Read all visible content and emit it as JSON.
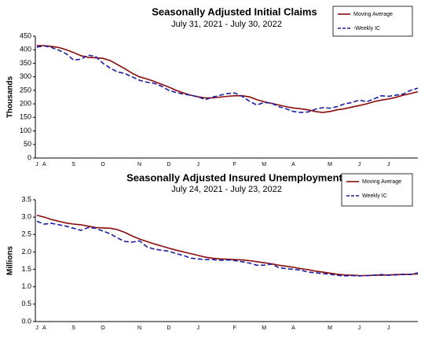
{
  "chart_data": [
    {
      "type": "line",
      "title": "Seasonally Adjusted Initial Claims",
      "subtitle": "July 31, 2021 - July 30, 2022",
      "y_label": "Thousands",
      "categories": [
        "J",
        "A",
        null,
        null,
        null,
        "S",
        null,
        null,
        null,
        "O",
        null,
        null,
        null,
        null,
        "N",
        null,
        null,
        null,
        "D",
        null,
        null,
        null,
        "J",
        null,
        null,
        null,
        null,
        "F",
        null,
        null,
        null,
        "M",
        null,
        null,
        null,
        "A",
        null,
        null,
        null,
        null,
        "M",
        null,
        null,
        null,
        "J",
        null,
        null,
        null,
        "J",
        null,
        null,
        null,
        null
      ],
      "series": [
        {
          "name": "Moving Average",
          "color": "#8b0a0a",
          "dash": false,
          "values": [
            415,
            415,
            412,
            408,
            400,
            390,
            378,
            372,
            370,
            368,
            360,
            345,
            330,
            313,
            300,
            292,
            283,
            272,
            262,
            250,
            240,
            232,
            226,
            222,
            222,
            225,
            228,
            230,
            230,
            226,
            216,
            208,
            202,
            196,
            190,
            185,
            182,
            178,
            172,
            168,
            172,
            178,
            182,
            188,
            194,
            200,
            208,
            214,
            218,
            224,
            232,
            238,
            245
          ]
        },
        {
          "name": "-Weekly IC",
          "color": "#1c1ca8",
          "dash": true,
          "values": [
            410,
            414,
            408,
            398,
            385,
            362,
            365,
            380,
            375,
            350,
            332,
            318,
            312,
            300,
            287,
            280,
            276,
            265,
            250,
            242,
            236,
            232,
            226,
            216,
            225,
            232,
            238,
            240,
            228,
            210,
            196,
            205,
            203,
            190,
            182,
            172,
            168,
            170,
            180,
            186,
            184,
            190,
            200,
            205,
            214,
            208,
            218,
            230,
            228,
            232,
            236,
            250,
            258
          ]
        }
      ],
      "ylim": [
        0,
        450
      ],
      "yticks": [
        0,
        50,
        100,
        150,
        200,
        250,
        300,
        350,
        400,
        450
      ],
      "grid": false
    },
    {
      "type": "line",
      "title": "Seasonally Adjusted Insured Unemployment",
      "subtitle": "July 24, 2021 - July 23, 2022",
      "y_label": "Millions",
      "categories": [
        "J",
        "A",
        null,
        null,
        null,
        "S",
        null,
        null,
        null,
        "O",
        null,
        null,
        null,
        null,
        "N",
        null,
        null,
        null,
        "D",
        null,
        null,
        null,
        "J",
        null,
        null,
        null,
        null,
        "F",
        null,
        null,
        null,
        "M",
        null,
        null,
        null,
        "A",
        null,
        null,
        null,
        null,
        "M",
        null,
        null,
        null,
        "J",
        null,
        null,
        null,
        "J",
        null,
        null,
        null,
        null
      ],
      "series": [
        {
          "name": "Moving Average",
          "color": "#8b0a0a",
          "dash": false,
          "values": [
            3.05,
            3.0,
            2.93,
            2.88,
            2.83,
            2.8,
            2.78,
            2.74,
            2.7,
            2.69,
            2.68,
            2.64,
            2.56,
            2.46,
            2.37,
            2.3,
            2.23,
            2.17,
            2.11,
            2.05,
            2.0,
            1.95,
            1.9,
            1.85,
            1.82,
            1.8,
            1.79,
            1.78,
            1.77,
            1.75,
            1.72,
            1.69,
            1.66,
            1.62,
            1.59,
            1.56,
            1.52,
            1.49,
            1.45,
            1.42,
            1.39,
            1.36,
            1.34,
            1.33,
            1.32,
            1.32,
            1.33,
            1.33,
            1.34,
            1.35,
            1.35,
            1.36,
            1.37
          ]
        },
        {
          "name": "Weekly IC",
          "color": "#1c1ca8",
          "dash": true,
          "values": [
            2.88,
            2.8,
            2.82,
            2.78,
            2.74,
            2.68,
            2.62,
            2.7,
            2.68,
            2.6,
            2.52,
            2.4,
            2.3,
            2.28,
            2.32,
            2.15,
            2.08,
            2.05,
            2.02,
            1.95,
            1.9,
            1.82,
            1.8,
            1.78,
            1.78,
            1.76,
            1.77,
            1.75,
            1.72,
            1.68,
            1.62,
            1.62,
            1.65,
            1.55,
            1.52,
            1.5,
            1.48,
            1.42,
            1.4,
            1.38,
            1.36,
            1.33,
            1.31,
            1.32,
            1.31,
            1.32,
            1.33,
            1.35,
            1.33,
            1.34,
            1.36,
            1.35,
            1.4
          ]
        }
      ],
      "ylim": [
        0,
        3.5
      ],
      "yticks": [
        {
          "value": 0,
          "label": "0.0"
        },
        0.5,
        {
          "value": 1,
          "label": "1.0"
        },
        1.5,
        {
          "value": 2,
          "label": "2.0"
        },
        2.5,
        {
          "value": 3,
          "label": "3.0"
        },
        3.5
      ],
      "grid": false
    }
  ]
}
